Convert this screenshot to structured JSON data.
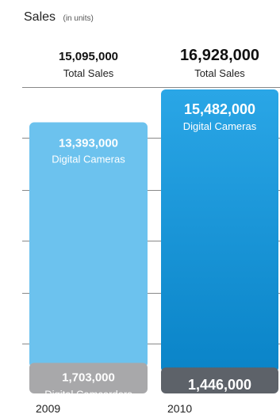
{
  "chart_data": {
    "type": "bar",
    "stacked": true,
    "title": "Sales",
    "subtitle": "(in units)",
    "categories": [
      "2009",
      "2010"
    ],
    "totals": [
      "15,095,000",
      "16,928,000"
    ],
    "total_label": "Total Sales",
    "series": [
      {
        "name": "Digital Camcorders",
        "values": [
          1703000,
          1446000
        ],
        "value_labels": [
          "1,703,000",
          "1,446,000"
        ],
        "colors": [
          "#a8a8aa",
          "#5d6269"
        ]
      },
      {
        "name": "Digital Cameras",
        "values": [
          13393000,
          15482000
        ],
        "value_labels": [
          "13,393,000",
          "15,482,000"
        ],
        "colors": [
          "#6cc2ee",
          "#1a96d8"
        ]
      }
    ],
    "gridlines": "horizontal",
    "axis_color": "#888888"
  }
}
